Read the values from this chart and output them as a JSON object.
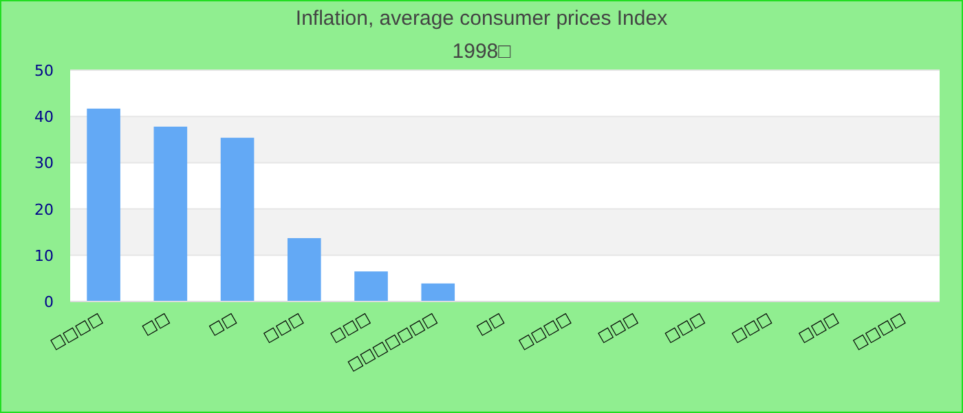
{
  "chart_data": {
    "type": "bar",
    "title": "Inflation, average consumer prices  Index",
    "subtitle": "1998□",
    "categories": [
      "□□□□",
      "□□",
      "□□",
      "□□□",
      "□□□",
      "□□□□□□□",
      "□□",
      "□□□□",
      "□□□",
      "□□□",
      "□□□",
      "□□□",
      "□□□□"
    ],
    "values": [
      41.7,
      37.8,
      35.4,
      13.7,
      6.5,
      3.9,
      0,
      0,
      0,
      0,
      0,
      0,
      0
    ],
    "color": "#63a9f5",
    "ylim": [
      0,
      50
    ],
    "yticks": [
      0,
      10,
      20,
      30,
      40,
      50
    ],
    "grid": "y"
  }
}
